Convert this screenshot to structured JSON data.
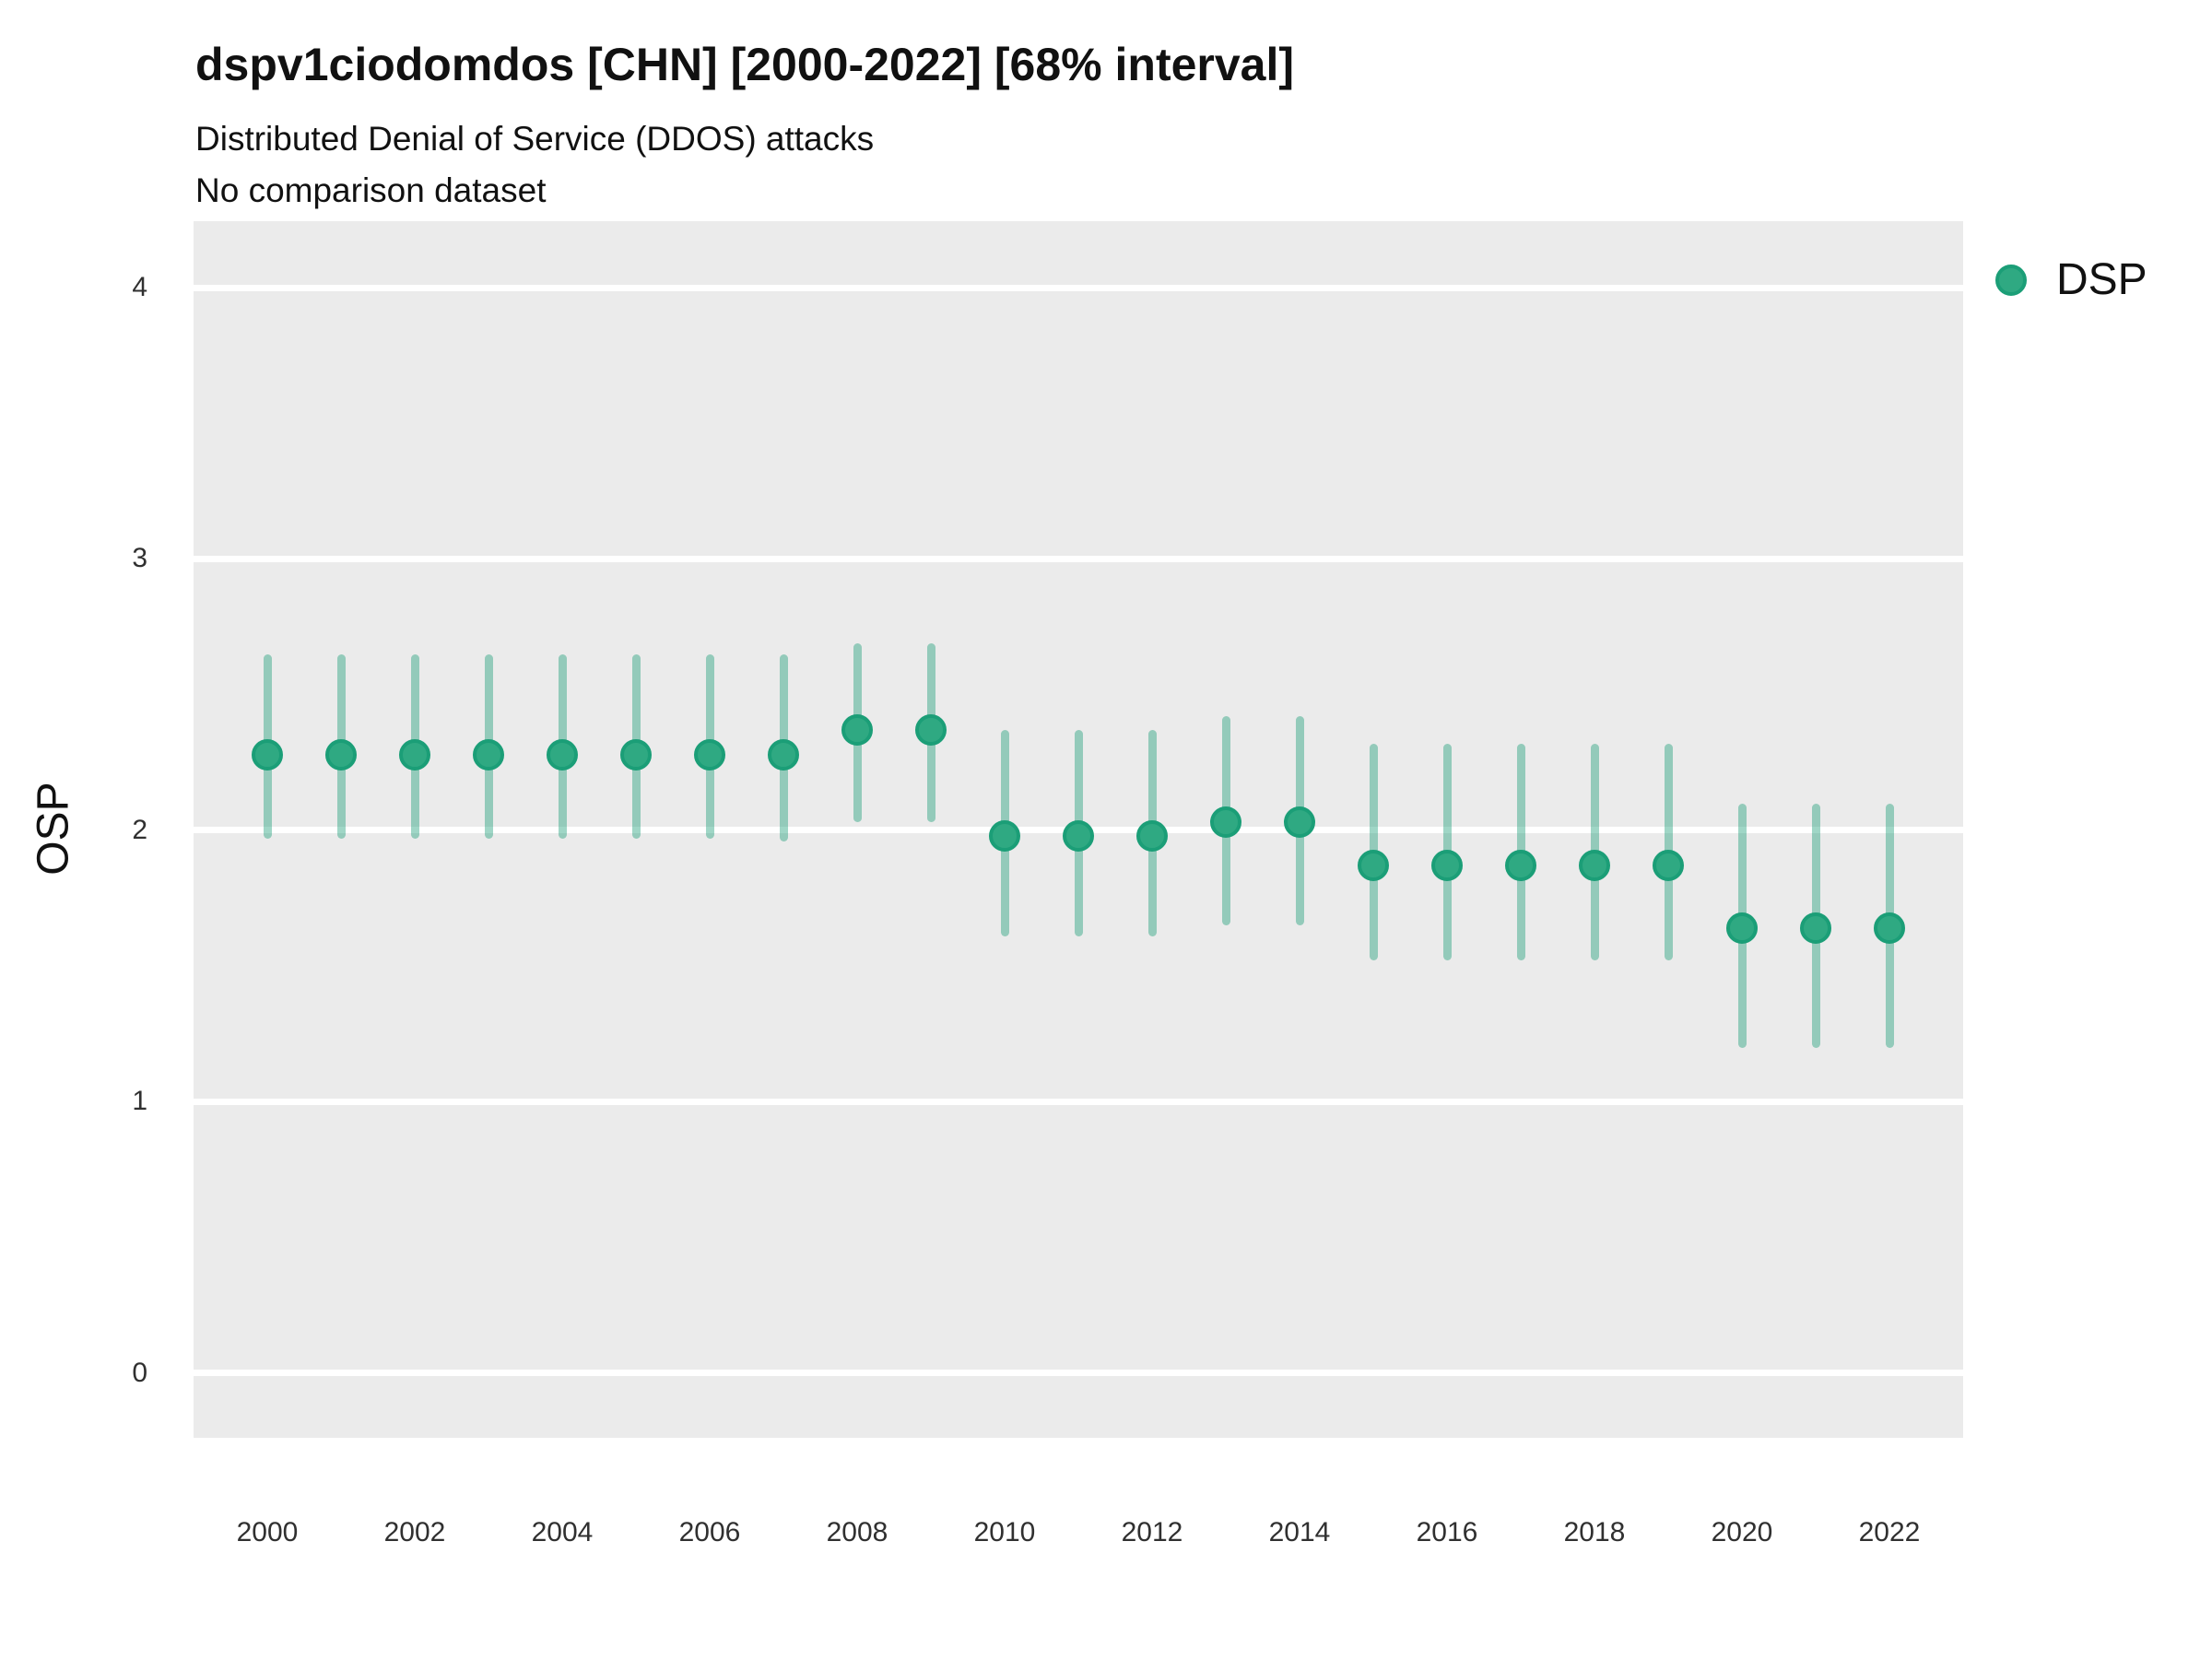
{
  "header": {
    "title": "dspv1ciodomdos [CHN] [2000-2022] [68% interval]",
    "subtitle": "Distributed Denial of Service (DDOS) attacks",
    "comparison_note": "No comparison dataset"
  },
  "y_axis_title": "OSP",
  "legend": {
    "label": "DSP",
    "marker": "circle-icon"
  },
  "colors": {
    "panel_background": "#EBEBEB",
    "gridline": "#FFFFFF",
    "point_fill": "#2FA982",
    "point_border": "#1B9E77",
    "interval_bar": "rgba(27,158,119,0.42)",
    "text": "#111111",
    "tick_text": "#303030"
  },
  "chart_data": {
    "type": "scatter",
    "title": "dspv1ciodomdos [CHN] [2000-2022] [68% interval]",
    "subtitle": "Distributed Denial of Service (DDOS) attacks",
    "note": "No comparison dataset",
    "xlabel": "",
    "ylabel": "OSP",
    "interval": "68%",
    "grid": "major-horizontal",
    "legend_position": "right",
    "xlim": [
      1999,
      2023
    ],
    "ylim": [
      -0.238,
      4.2445
    ],
    "x_ticks": [
      2000,
      2002,
      2004,
      2006,
      2008,
      2010,
      2012,
      2014,
      2016,
      2018,
      2020,
      2022
    ],
    "y_ticks": [
      0,
      1,
      2,
      3,
      4
    ],
    "series": [
      {
        "name": "DSP",
        "points": [
          {
            "year": 2000,
            "y": 2.28,
            "lo": 1.97,
            "hi": 2.65
          },
          {
            "year": 2001,
            "y": 2.28,
            "lo": 1.97,
            "hi": 2.65
          },
          {
            "year": 2002,
            "y": 2.28,
            "lo": 1.97,
            "hi": 2.65
          },
          {
            "year": 2003,
            "y": 2.28,
            "lo": 1.97,
            "hi": 2.65
          },
          {
            "year": 2004,
            "y": 2.28,
            "lo": 1.97,
            "hi": 2.65
          },
          {
            "year": 2005,
            "y": 2.28,
            "lo": 1.97,
            "hi": 2.65
          },
          {
            "year": 2006,
            "y": 2.28,
            "lo": 1.97,
            "hi": 2.65
          },
          {
            "year": 2007,
            "y": 2.28,
            "lo": 1.96,
            "hi": 2.65
          },
          {
            "year": 2008,
            "y": 2.37,
            "lo": 2.03,
            "hi": 2.69
          },
          {
            "year": 2009,
            "y": 2.37,
            "lo": 2.03,
            "hi": 2.69
          },
          {
            "year": 2010,
            "y": 1.98,
            "lo": 1.61,
            "hi": 2.37
          },
          {
            "year": 2011,
            "y": 1.98,
            "lo": 1.61,
            "hi": 2.37
          },
          {
            "year": 2012,
            "y": 1.98,
            "lo": 1.61,
            "hi": 2.37
          },
          {
            "year": 2013,
            "y": 2.03,
            "lo": 1.65,
            "hi": 2.42
          },
          {
            "year": 2014,
            "y": 2.03,
            "lo": 1.65,
            "hi": 2.42
          },
          {
            "year": 2015,
            "y": 1.87,
            "lo": 1.52,
            "hi": 2.32
          },
          {
            "year": 2016,
            "y": 1.87,
            "lo": 1.52,
            "hi": 2.32
          },
          {
            "year": 2017,
            "y": 1.87,
            "lo": 1.52,
            "hi": 2.32
          },
          {
            "year": 2018,
            "y": 1.87,
            "lo": 1.52,
            "hi": 2.32
          },
          {
            "year": 2019,
            "y": 1.87,
            "lo": 1.52,
            "hi": 2.32
          },
          {
            "year": 2020,
            "y": 1.64,
            "lo": 1.2,
            "hi": 2.1
          },
          {
            "year": 2021,
            "y": 1.64,
            "lo": 1.2,
            "hi": 2.1
          },
          {
            "year": 2022,
            "y": 1.64,
            "lo": 1.2,
            "hi": 2.1
          }
        ]
      }
    ]
  }
}
